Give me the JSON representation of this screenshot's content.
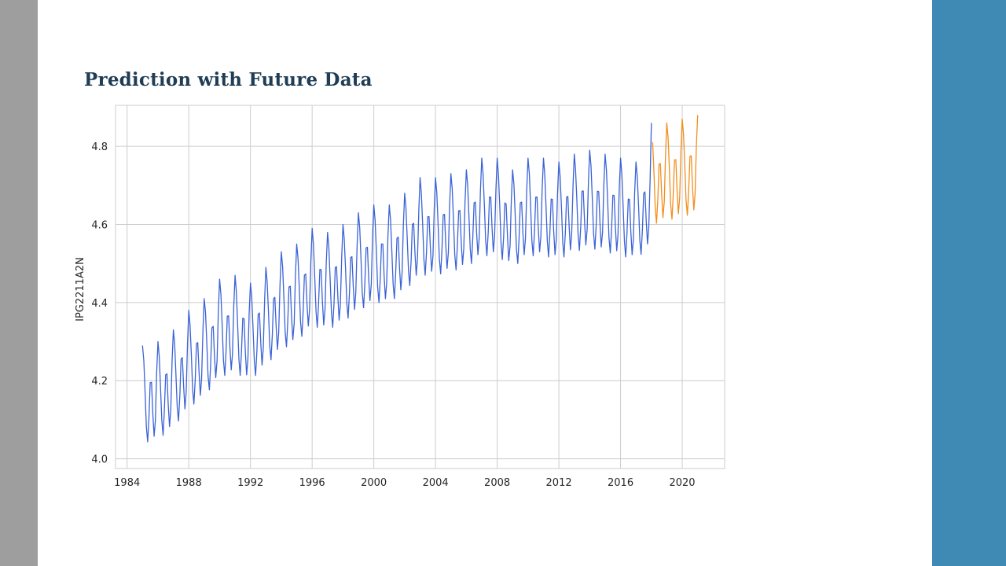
{
  "slide": {
    "title": "Prediction with Future Data",
    "colors": {
      "left_bar": "#9e9e9e",
      "right_bar": "#3f8ab5",
      "title": "#1f3d55"
    }
  },
  "chart_data": {
    "type": "line",
    "title": "",
    "xlabel": "",
    "ylabel": "IPG2211A2N",
    "x_ticks": [
      "1984",
      "1988",
      "1992",
      "1996",
      "2000",
      "2004",
      "2008",
      "2012",
      "2016",
      "2020"
    ],
    "y_ticks": [
      "4.0",
      "4.2",
      "4.4",
      "4.6",
      "4.8"
    ],
    "xlim": [
      1983.25,
      2022.75
    ],
    "ylim": [
      3.975,
      4.905
    ],
    "grid": true,
    "legend": "none",
    "seasonal_pattern": [
      0.16,
      0.12,
      0.04,
      -0.05,
      -0.09,
      -0.03,
      0.06,
      0.06,
      -0.02,
      -0.08,
      -0.04,
      0.08
    ],
    "series": [
      {
        "color": "#3b63d6",
        "note": "monthly observations 1985-01 to 2018-01",
        "annual_level": [
          [
            1985,
            4.13
          ],
          [
            1986,
            4.14
          ],
          [
            1987,
            4.17
          ],
          [
            1988,
            4.22
          ],
          [
            1989,
            4.25
          ],
          [
            1990,
            4.3
          ],
          [
            1991,
            4.31
          ],
          [
            1992,
            4.29
          ],
          [
            1993,
            4.33
          ],
          [
            1994,
            4.37
          ],
          [
            1995,
            4.39
          ],
          [
            1996,
            4.43
          ],
          [
            1997,
            4.42
          ],
          [
            1998,
            4.44
          ],
          [
            1999,
            4.47
          ],
          [
            2000,
            4.49
          ],
          [
            2001,
            4.49
          ],
          [
            2002,
            4.52
          ],
          [
            2003,
            4.56
          ],
          [
            2004,
            4.56
          ],
          [
            2005,
            4.57
          ],
          [
            2006,
            4.58
          ],
          [
            2007,
            4.61
          ],
          [
            2008,
            4.61
          ],
          [
            2009,
            4.58
          ],
          [
            2010,
            4.61
          ],
          [
            2011,
            4.61
          ],
          [
            2012,
            4.6
          ],
          [
            2013,
            4.62
          ],
          [
            2014,
            4.63
          ],
          [
            2015,
            4.62
          ],
          [
            2016,
            4.61
          ],
          [
            2017,
            4.6
          ],
          [
            2018,
            4.64
          ]
        ],
        "start": 1985.0,
        "end": 2018.0,
        "last_value": 4.86
      },
      {
        "color": "#f28e1c",
        "note": "predicted monthly values 2018-02 to 2021-01",
        "annual_level": [
          [
            2018,
            4.69
          ],
          [
            2019,
            4.7
          ],
          [
            2020,
            4.71
          ],
          [
            2021,
            4.72
          ]
        ],
        "start": 2018.0833,
        "end": 2021.0
      }
    ]
  }
}
